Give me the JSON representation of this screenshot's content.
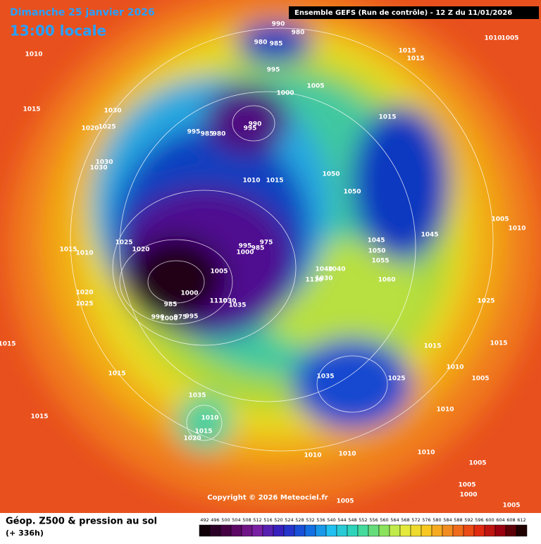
{
  "header": {
    "date": "Dimanche 25 janvier 2026",
    "time": "13:00 locale",
    "run": "Ensemble GEFS  (Run de contrôle)  -  12 Z du 11/01/2026"
  },
  "map": {
    "isobar_labels": [
      990,
      980,
      980,
      985,
      1010,
      1015,
      1015,
      1010,
      1005,
      995,
      1000,
      1005,
      1015,
      1030,
      1020,
      1025,
      995,
      985,
      980,
      990,
      995,
      1015,
      1030,
      1030,
      1050,
      1010,
      1015,
      1050,
      1005,
      1010,
      1045,
      1025,
      1020,
      1015,
      1010,
      995,
      1000,
      985,
      975,
      1045,
      1050,
      1055,
      1005,
      1040,
      1040,
      1110,
      1030,
      1060,
      1000,
      1020,
      1025,
      985,
      1110,
      1030,
      1035,
      990,
      1000,
      975,
      995,
      1025,
      1015,
      1015,
      1015,
      1010,
      1015,
      1035,
      1025,
      1005,
      1035,
      1010,
      1010,
      1015,
      1015,
      1020,
      1010,
      1010,
      1010,
      1005,
      1005,
      1000,
      1005,
      1005
    ],
    "copyright": "Copyright © 2026 Meteociel.fr"
  },
  "footer": {
    "title": "Géop. Z500 & pression au sol",
    "lead": "(+ 336h)"
  },
  "legend": {
    "levels": [
      492,
      496,
      500,
      504,
      508,
      512,
      516,
      520,
      524,
      528,
      532,
      536,
      540,
      544,
      548,
      552,
      556,
      560,
      564,
      568,
      572,
      576,
      580,
      584,
      588,
      592,
      596,
      600,
      604,
      608,
      612
    ]
  }
}
